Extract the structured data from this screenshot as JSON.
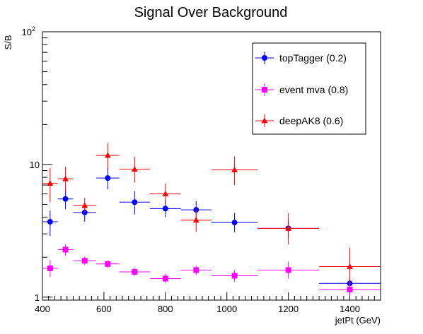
{
  "chart_data": {
    "type": "scatter",
    "title": "Signal Over Background",
    "xlabel": "jetPt (GeV)",
    "ylabel": "S/B",
    "xlim": [
      400,
      1500
    ],
    "ylim": [
      0.95,
      100
    ],
    "yscale": "log",
    "grid": false,
    "legend_position": "top-right",
    "x_ticks": [
      {
        "value": 400,
        "label": "400"
      },
      {
        "value": 600,
        "label": "600"
      },
      {
        "value": 800,
        "label": "800"
      },
      {
        "value": 1000,
        "label": "1000"
      },
      {
        "value": 1200,
        "label": "1200"
      },
      {
        "value": 1400,
        "label": "1400"
      }
    ],
    "y_ticks": [
      {
        "value": 1,
        "label": "1",
        "sup": ""
      },
      {
        "value": 10,
        "label": "10",
        "sup": ""
      },
      {
        "value": 100,
        "label": "10",
        "sup": "2"
      }
    ],
    "series": [
      {
        "name": "topTagger (0.2)",
        "color": "#0000ff",
        "marker": "circle",
        "points": [
          {
            "x": 425,
            "xerr": 25,
            "y": 3.7,
            "ylo": 2.9,
            "yhi": 4.5
          },
          {
            "x": 475,
            "xerr": 25,
            "y": 5.5,
            "ylo": 4.6,
            "yhi": 6.5
          },
          {
            "x": 537.5,
            "xerr": 37.5,
            "y": 4.35,
            "ylo": 3.7,
            "yhi": 5.0
          },
          {
            "x": 612.5,
            "xerr": 37.5,
            "y": 7.9,
            "ylo": 6.5,
            "yhi": 9.5
          },
          {
            "x": 700,
            "xerr": 50,
            "y": 5.2,
            "ylo": 4.2,
            "yhi": 6.3
          },
          {
            "x": 800,
            "xerr": 50,
            "y": 4.65,
            "ylo": 4.0,
            "yhi": 5.4
          },
          {
            "x": 900,
            "xerr": 50,
            "y": 4.55,
            "ylo": 3.9,
            "yhi": 5.3
          },
          {
            "x": 1025,
            "xerr": 75,
            "y": 3.65,
            "ylo": 3.1,
            "yhi": 4.3
          },
          {
            "x": 1200,
            "xerr": 100,
            "y": 3.3,
            "ylo": 2.8,
            "yhi": 3.9
          },
          {
            "x": 1400,
            "xerr": 100,
            "y": 1.27,
            "ylo": 1.18,
            "yhi": 1.38
          }
        ]
      },
      {
        "name": "event mva (0.8)",
        "color": "#ff00ff",
        "marker": "square",
        "points": [
          {
            "x": 425,
            "xerr": 25,
            "y": 1.65,
            "ylo": 1.42,
            "yhi": 1.9
          },
          {
            "x": 475,
            "xerr": 25,
            "y": 2.28,
            "ylo": 2.05,
            "yhi": 2.5
          },
          {
            "x": 537.5,
            "xerr": 37.5,
            "y": 1.88,
            "ylo": 1.75,
            "yhi": 2.02
          },
          {
            "x": 612.5,
            "xerr": 37.5,
            "y": 1.78,
            "ylo": 1.66,
            "yhi": 1.9
          },
          {
            "x": 700,
            "xerr": 50,
            "y": 1.55,
            "ylo": 1.45,
            "yhi": 1.66
          },
          {
            "x": 800,
            "xerr": 50,
            "y": 1.38,
            "ylo": 1.28,
            "yhi": 1.5
          },
          {
            "x": 900,
            "xerr": 50,
            "y": 1.6,
            "ylo": 1.47,
            "yhi": 1.73
          },
          {
            "x": 1025,
            "xerr": 75,
            "y": 1.45,
            "ylo": 1.3,
            "yhi": 1.6
          },
          {
            "x": 1200,
            "xerr": 100,
            "y": 1.6,
            "ylo": 1.38,
            "yhi": 1.85
          },
          {
            "x": 1400,
            "xerr": 100,
            "y": 1.14,
            "ylo": 1.02,
            "yhi": 1.28
          }
        ]
      },
      {
        "name": "deepAK8 (0.6)",
        "color": "#ff0000",
        "marker": "triangle",
        "points": [
          {
            "x": 425,
            "xerr": 25,
            "y": 7.2,
            "ylo": 5.2,
            "yhi": 9.4
          },
          {
            "x": 475,
            "xerr": 25,
            "y": 7.8,
            "ylo": 6.2,
            "yhi": 9.6
          },
          {
            "x": 537.5,
            "xerr": 37.5,
            "y": 4.9,
            "ylo": 4.3,
            "yhi": 5.6
          },
          {
            "x": 612.5,
            "xerr": 37.5,
            "y": 11.7,
            "ylo": 9.2,
            "yhi": 14.5
          },
          {
            "x": 700,
            "xerr": 50,
            "y": 9.2,
            "ylo": 7.3,
            "yhi": 11.4
          },
          {
            "x": 800,
            "xerr": 50,
            "y": 6.0,
            "ylo": 5.0,
            "yhi": 7.2
          },
          {
            "x": 900,
            "xerr": 50,
            "y": 3.8,
            "ylo": 3.1,
            "yhi": 4.6
          },
          {
            "x": 1025,
            "xerr": 75,
            "y": 9.1,
            "ylo": 7.0,
            "yhi": 11.5
          },
          {
            "x": 1200,
            "xerr": 100,
            "y": 3.3,
            "ylo": 2.5,
            "yhi": 4.3
          },
          {
            "x": 1400,
            "xerr": 100,
            "y": 1.7,
            "ylo": 1.25,
            "yhi": 2.35
          }
        ]
      }
    ]
  }
}
